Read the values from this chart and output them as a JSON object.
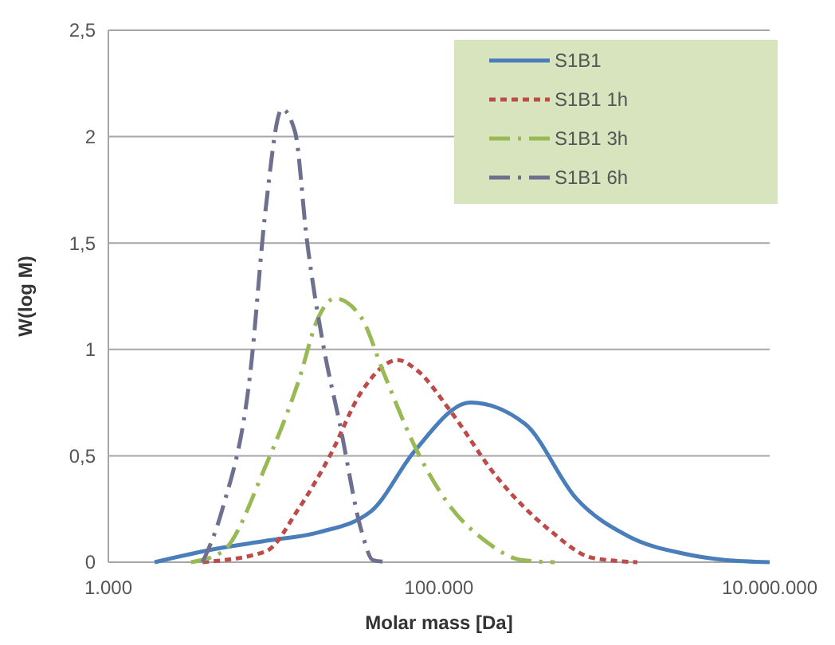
{
  "chart_data": {
    "type": "line",
    "xlabel": "Molar mass [Da]",
    "ylabel": "W(log M)",
    "log": "x",
    "grid": "y",
    "legend": "top right",
    "marker": "none",
    "xlim": [
      1000,
      10000000
    ],
    "xticks": [
      {
        "value": 1000,
        "label": "1.000"
      },
      {
        "value": 100000,
        "label": "100.000"
      },
      {
        "value": 10000000,
        "label": "10.000.000"
      }
    ],
    "ylim": [
      0,
      2.5
    ],
    "yticks": [
      0,
      {
        "value": 0.5,
        "label": "0,5"
      },
      1,
      {
        "value": 1.5,
        "label": "1,5"
      },
      2,
      {
        "value": 2.5,
        "label": "2,5"
      }
    ],
    "series": [
      {
        "name": "S1B1",
        "color": "#4a7ebb",
        "line_style": "solid",
        "x": [
          1905,
          4266,
          8913,
          18621,
          38905,
          70795,
          154882,
          331131,
          676083,
          1412538,
          3019952,
          5370318,
          10000000
        ],
        "values": [
          0,
          0.06,
          0.1,
          0.14,
          0.24,
          0.52,
          0.75,
          0.65,
          0.3,
          0.12,
          0.04,
          0.01,
          0
        ]
      },
      {
        "name": "S1B1 1h",
        "color": "#be4b48",
        "line_style": "dotted",
        "x": [
          3715,
          8913,
          14125,
          21878,
          33884,
          56234,
          74131,
          114815,
          223872,
          467735,
          851138,
          1584893
        ],
        "values": [
          0,
          0.05,
          0.25,
          0.5,
          0.8,
          0.95,
          0.9,
          0.72,
          0.4,
          0.15,
          0.02,
          0
        ]
      },
      {
        "name": "S1B1 3h",
        "color": "#98b954",
        "line_style": "dashed",
        "x": [
          3162,
          4898,
          8913,
          14125,
          18621,
          23442,
          33884,
          45709,
          70795,
          114815,
          190546,
          316228,
          501187
        ],
        "values": [
          0,
          0.05,
          0.45,
          0.85,
          1.15,
          1.24,
          1.15,
          0.9,
          0.55,
          0.27,
          0.1,
          0.01,
          0
        ]
      },
      {
        "name": "S1B1 6h",
        "color": "#6e7090",
        "line_style": "dashed",
        "x": [
          3715,
          4898,
          7244,
          8913,
          11220,
          13490,
          15849,
          19953,
          25119,
          33884,
          39811,
          50119
        ],
        "values": [
          0,
          0.25,
          0.9,
          1.65,
          2.13,
          2.02,
          1.52,
          1.02,
          0.65,
          0.15,
          0.01,
          0
        ]
      }
    ]
  }
}
